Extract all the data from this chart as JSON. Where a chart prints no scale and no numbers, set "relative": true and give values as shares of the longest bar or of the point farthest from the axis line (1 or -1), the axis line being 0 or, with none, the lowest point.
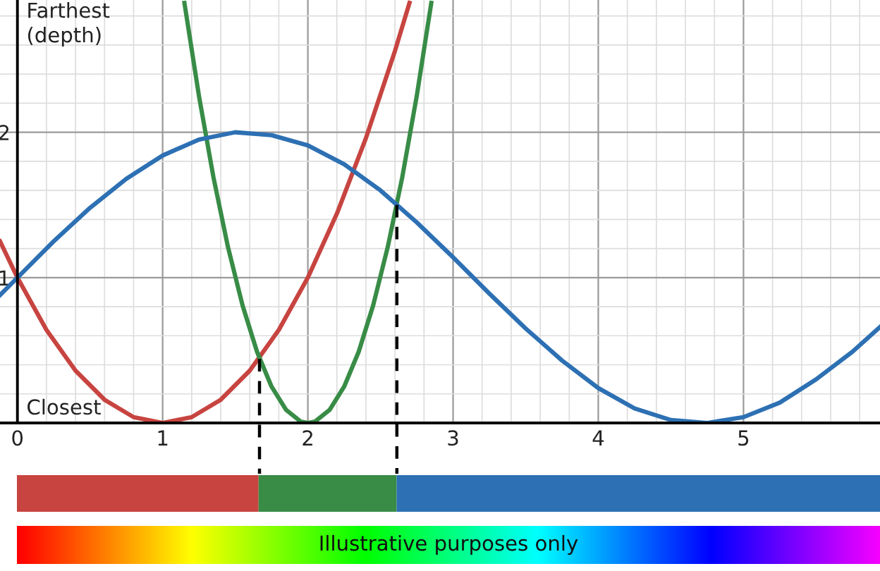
{
  "chart_data": [
    {
      "type": "line",
      "annotations": [
        "Farthest\n(depth)",
        "Closest"
      ],
      "xlim": [
        -0.12,
        5.94
      ],
      "ylim": [
        0,
        2.91
      ],
      "xticks": [
        0,
        1,
        2,
        3,
        4,
        5
      ],
      "yticks": [
        1,
        2
      ],
      "grid": true,
      "marker": "none",
      "series": [
        {
          "color": "#c74440",
          "x": [
            -0.12,
            0,
            0.2,
            0.4,
            0.6,
            0.8,
            1,
            1.2,
            1.4,
            1.6,
            1.8,
            2,
            2.2,
            2.4,
            2.6,
            2.7
          ],
          "values": [
            1.25,
            1,
            0.64,
            0.36,
            0.16,
            0.04,
            0,
            0.04,
            0.16,
            0.36,
            0.64,
            1,
            1.44,
            1.96,
            2.56,
            2.89
          ]
        },
        {
          "color": "#388c46",
          "x": [
            1.15,
            1.25,
            1.35,
            1.45,
            1.55,
            1.65,
            1.75,
            1.85,
            1.95,
            2,
            2.05,
            2.15,
            2.25,
            2.35,
            2.45,
            2.55,
            2.65,
            2.75,
            2.85
          ],
          "values": [
            2.89,
            2.25,
            1.69,
            1.21,
            0.81,
            0.49,
            0.25,
            0.09,
            0.01,
            0,
            0.01,
            0.09,
            0.25,
            0.49,
            0.81,
            1.21,
            1.69,
            2.25,
            2.89
          ]
        },
        {
          "color": "#2d70b3",
          "x": [
            -0.12,
            0,
            0.25,
            0.5,
            0.75,
            1,
            1.25,
            1.5,
            1.75,
            2,
            2.25,
            2.5,
            2.75,
            3,
            3.25,
            3.5,
            3.75,
            4,
            4.25,
            4.5,
            4.75,
            5,
            5.25,
            5.5,
            5.75,
            5.94
          ],
          "values": [
            0.88,
            1,
            1.25,
            1.48,
            1.68,
            1.84,
            1.95,
            2.0,
            1.98,
            1.91,
            1.78,
            1.6,
            1.38,
            1.14,
            0.89,
            0.65,
            0.43,
            0.24,
            0.1,
            0.02,
            0,
            0.04,
            0.14,
            0.3,
            0.49,
            0.66
          ]
        },
        {
          "color": "#000000",
          "line_style": "dashed",
          "x": [
            1.667,
            1.667
          ],
          "values": [
            0.44,
            0
          ]
        },
        {
          "color": "#000000",
          "line_style": "dashed",
          "x": [
            2.613,
            2.613
          ],
          "values": [
            1.5,
            0
          ]
        }
      ]
    },
    {
      "type": "bar",
      "orientation": "horizontal",
      "stacked": true,
      "relative": true,
      "categories": [
        null
      ],
      "series": [
        {
          "color": "#c74440",
          "values": [
            0.28
          ]
        },
        {
          "color": "#388c46",
          "values": [
            0.16
          ]
        },
        {
          "color": "#2d70b3",
          "values": [
            0.56
          ]
        }
      ]
    },
    {
      "type": "other",
      "annotations": [
        "Illustrative purposes only"
      ]
    }
  ]
}
